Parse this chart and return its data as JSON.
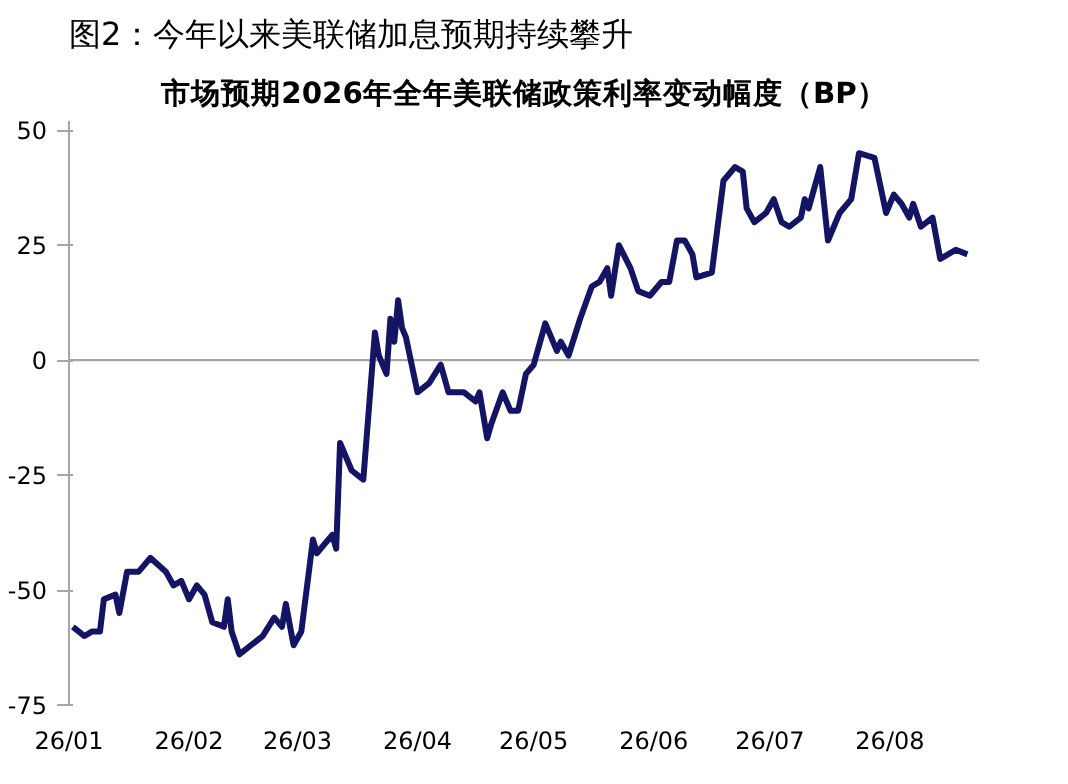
{
  "chart_data": {
    "type": "line",
    "title": "图2：今年以来美联储加息预期持续攀升",
    "subtitle": "市场预期2026年全年美联储政策利率变动幅度（BP）",
    "x": [
      "2026-01-02",
      "2026-01-05",
      "2026-01-07",
      "2026-01-09",
      "2026-01-10",
      "2026-01-13",
      "2026-01-14",
      "2026-01-16",
      "2026-01-19",
      "2026-01-22",
      "2026-01-26",
      "2026-01-28",
      "2026-01-30",
      "2026-02-01",
      "2026-02-03",
      "2026-02-05",
      "2026-02-07",
      "2026-02-10",
      "2026-02-11",
      "2026-02-12",
      "2026-02-14",
      "2026-02-20",
      "2026-02-23",
      "2026-02-25",
      "2026-02-26",
      "2026-02-28",
      "2026-03-02",
      "2026-03-05",
      "2026-03-06",
      "2026-03-10",
      "2026-03-11",
      "2026-03-12",
      "2026-03-15",
      "2026-03-18",
      "2026-03-21",
      "2026-03-22",
      "2026-03-24",
      "2026-03-25",
      "2026-03-26",
      "2026-03-27",
      "2026-03-28",
      "2026-03-29",
      "2026-04-01",
      "2026-04-04",
      "2026-04-07",
      "2026-04-09",
      "2026-04-13",
      "2026-04-16",
      "2026-04-17",
      "2026-04-19",
      "2026-04-20",
      "2026-04-23",
      "2026-04-25",
      "2026-04-27",
      "2026-04-29",
      "2026-05-01",
      "2026-05-04",
      "2026-05-07",
      "2026-05-08",
      "2026-05-10",
      "2026-05-13",
      "2026-05-16",
      "2026-05-18",
      "2026-05-20",
      "2026-05-21",
      "2026-05-23",
      "2026-05-26",
      "2026-05-28",
      "2026-05-31",
      "2026-06-03",
      "2026-06-05",
      "2026-06-07",
      "2026-06-09",
      "2026-06-11",
      "2026-06-12",
      "2026-06-16",
      "2026-06-19",
      "2026-06-22",
      "2026-06-24",
      "2026-06-25",
      "2026-06-27",
      "2026-06-30",
      "2026-07-02",
      "2026-07-04",
      "2026-07-06",
      "2026-07-09",
      "2026-07-10",
      "2026-07-11",
      "2026-07-14",
      "2026-07-16",
      "2026-07-19",
      "2026-07-22",
      "2026-07-24",
      "2026-07-28",
      "2026-07-31",
      "2026-08-02",
      "2026-08-04",
      "2026-08-06",
      "2026-08-07",
      "2026-08-09",
      "2026-08-12",
      "2026-08-14",
      "2026-08-18",
      "2026-08-21"
    ],
    "series": [
      {
        "color": "#141464",
        "values": [
          -58,
          -60,
          -59,
          -59,
          -52,
          -51,
          -55,
          -46,
          -46,
          -43,
          -46,
          -49,
          -48,
          -52,
          -49,
          -51,
          -57,
          -58,
          -52,
          -59,
          -64,
          -60,
          -56,
          -58,
          -53,
          -62,
          -59,
          -39,
          -42,
          -38,
          -41,
          -18,
          -24,
          -26,
          6,
          1,
          -3,
          9,
          4,
          13,
          7,
          5,
          -7,
          -5,
          -1,
          -7,
          -7,
          -9,
          -7,
          -17,
          -14,
          -7,
          -11,
          -11,
          -3,
          -1,
          8,
          2,
          4,
          1,
          9,
          16,
          17,
          20,
          14,
          25,
          20,
          15,
          14,
          17,
          17,
          26,
          26,
          23,
          18,
          19,
          39,
          42,
          41,
          33,
          30,
          32,
          35,
          30,
          29,
          31,
          35,
          33,
          42,
          26,
          32,
          35,
          45,
          44,
          32,
          36,
          34,
          31,
          34,
          29,
          31,
          22,
          24,
          23
        ]
      }
    ],
    "xlim": [
      "2026-01-01",
      "2026-08-24"
    ],
    "xticks": [
      {
        "value": "2026-01-01",
        "label": "26/01"
      },
      {
        "value": "2026-02-01",
        "label": "26/02"
      },
      {
        "value": "2026-03-01",
        "label": "26/03"
      },
      {
        "value": "2026-04-01",
        "label": "26/04"
      },
      {
        "value": "2026-05-01",
        "label": "26/05"
      },
      {
        "value": "2026-06-01",
        "label": "26/06"
      },
      {
        "value": "2026-07-01",
        "label": "26/07"
      },
      {
        "value": "2026-08-01",
        "label": "26/08"
      }
    ],
    "ylim": [
      -75,
      52
    ],
    "yticks": [
      -75,
      -50,
      -25,
      0,
      25,
      50
    ],
    "ref_lines": [
      {
        "axis": "y",
        "value": 0,
        "color": "#a6a6a6"
      }
    ],
    "grid": false,
    "marker": "none",
    "line_style": "solid"
  }
}
